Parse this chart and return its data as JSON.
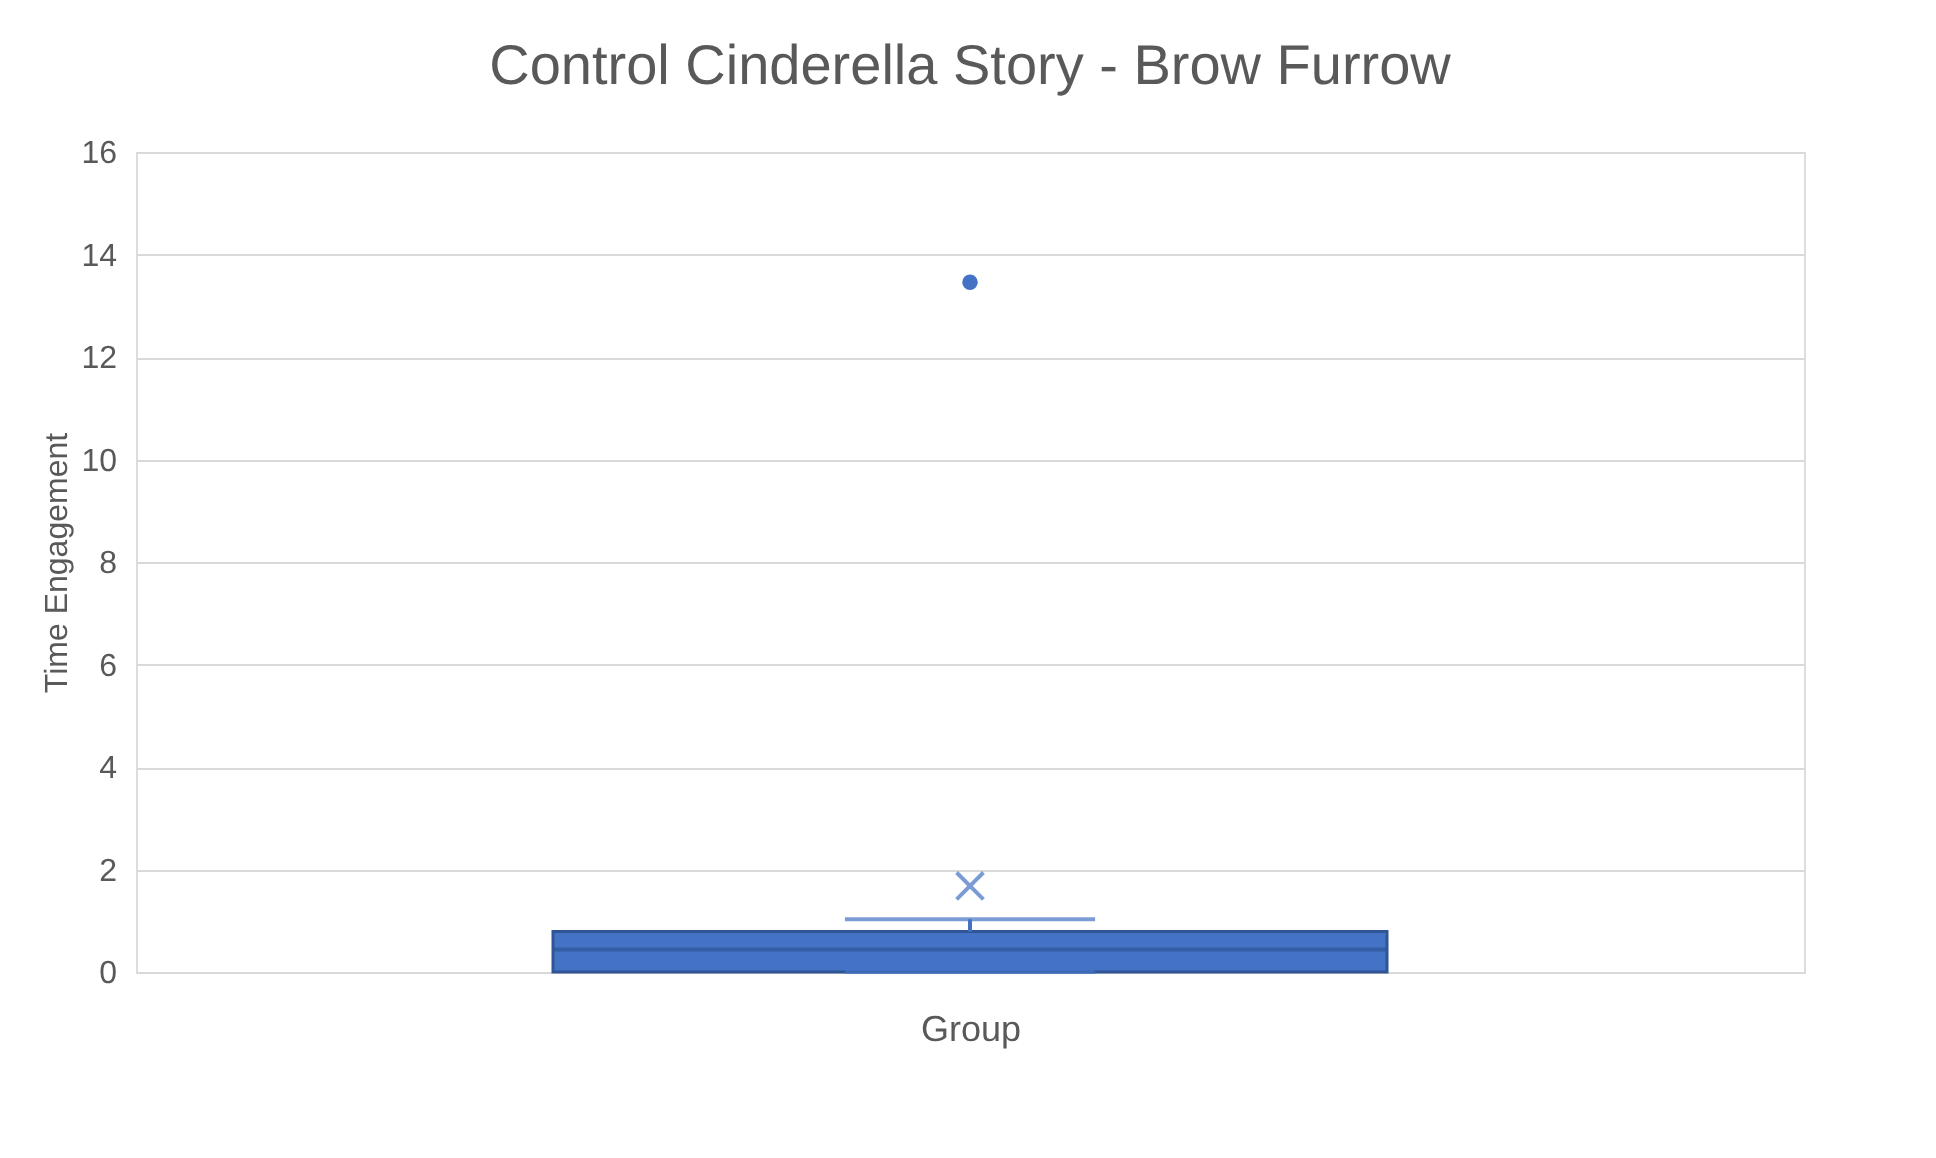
{
  "chart_data": {
    "type": "box",
    "title": "Control Cinderella Story - Brow Furrow",
    "xlabel": "Group",
    "ylabel": "Time Engagement",
    "categories": [
      null
    ],
    "color": "#4472c4",
    "boxes": [
      {
        "low": 0,
        "q1": 0,
        "median": 0.44,
        "q3": 0.79,
        "high": 1.03,
        "mean": 1.68,
        "outliers": [
          13.46
        ]
      }
    ],
    "ylim": [
      0,
      16
    ],
    "yticks": [
      0,
      2,
      4,
      6,
      8,
      10,
      12,
      14,
      16
    ],
    "grid": "y",
    "tick_labels": "y"
  }
}
